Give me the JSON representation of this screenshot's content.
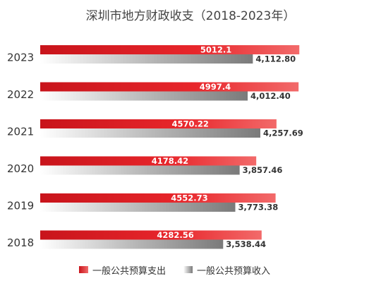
{
  "chart_data": {
    "type": "bar",
    "orientation": "horizontal",
    "title": "深圳市地方财政收支（2018-2023年）",
    "categories": [
      "2023",
      "2022",
      "2021",
      "2020",
      "2019",
      "2018"
    ],
    "series": [
      {
        "name": "一般公共预算支出",
        "values": [
          5012.1,
          4997.4,
          4570.22,
          4178.42,
          4552.73,
          4282.56
        ],
        "labels": [
          "5012.1",
          "4997.4",
          "4570.22",
          "4178.42",
          "4552.73",
          "4282.56"
        ],
        "color": "#e8262b"
      },
      {
        "name": "一般公共预算收入",
        "values": [
          4112.8,
          4012.4,
          4257.69,
          3857.46,
          3773.38,
          3538.44
        ],
        "labels": [
          "4,112.80",
          "4,012.40",
          "4,257.69",
          "3,857.46",
          "3,773.38",
          "3,538.44"
        ],
        "color": "#7f7f7f"
      }
    ],
    "xlim": [
      0,
      5500
    ],
    "grid": false,
    "legend": "bottom"
  }
}
